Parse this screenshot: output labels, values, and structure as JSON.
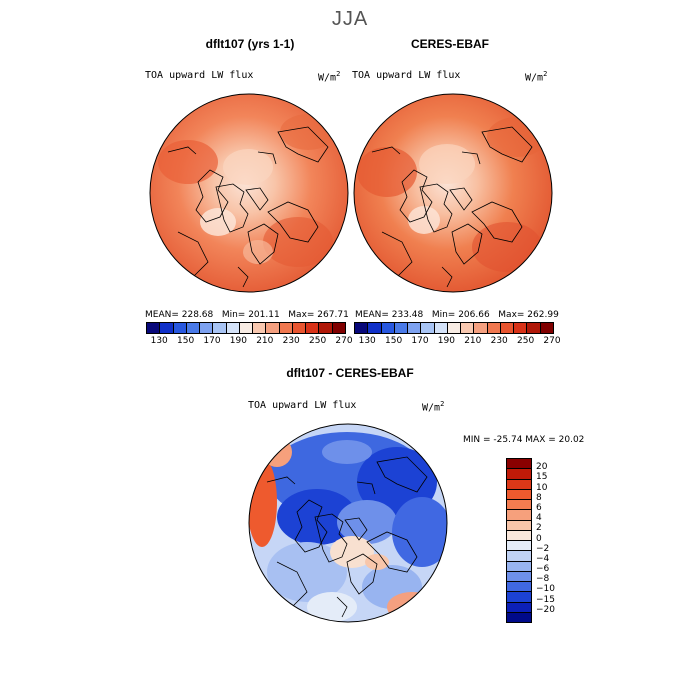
{
  "figure": {
    "season": "JJA"
  },
  "panel_left": {
    "title": "dflt107 (yrs 1-1)",
    "variable": "TOA upward LW flux",
    "units": "W/m",
    "units_exp": "2",
    "mean": "MEAN= 228.68",
    "min": "Min= 201.11",
    "max": "Max= 267.71"
  },
  "panel_right": {
    "title": "CERES-EBAF",
    "variable": "TOA upward LW flux",
    "units": "W/m",
    "units_exp": "2",
    "mean": "MEAN= 233.48",
    "min": "Min= 206.66",
    "max": "Max= 262.99"
  },
  "panel_diff": {
    "title": "dflt107 - CERES-EBAF",
    "variable": "TOA upward LW flux",
    "units": "W/m",
    "units_exp": "2",
    "minmax": "MIN = -25.74  MAX =  20.02"
  },
  "colorbar_top": {
    "labels": [
      "130",
      "150",
      "170",
      "190",
      "210",
      "230",
      "250",
      "270"
    ],
    "colors": [
      "#08087a",
      "#1030c8",
      "#2858e0",
      "#4a7ae8",
      "#7ea2f0",
      "#a8c4f4",
      "#d4e2f8",
      "#f8ece4",
      "#f8c8b0",
      "#f4a080",
      "#f07850",
      "#e85530",
      "#d83218",
      "#b01808",
      "#800000"
    ]
  },
  "colorbar_diff": {
    "labels": [
      "20",
      "15",
      "10",
      "8",
      "6",
      "4",
      "2",
      "0",
      "−2",
      "−4",
      "−6",
      "−8",
      "−10",
      "−15",
      "−20"
    ],
    "colors": [
      "#8a0000",
      "#c01a08",
      "#dc3818",
      "#ee5a2e",
      "#f47c50",
      "#f6a07c",
      "#f8c6aa",
      "#fae8dc",
      "#e4ecf8",
      "#c0d2f4",
      "#98b4f0",
      "#6e90ea",
      "#4068e2",
      "#1c42d4",
      "#0c20b8",
      "#000a8a"
    ]
  }
}
